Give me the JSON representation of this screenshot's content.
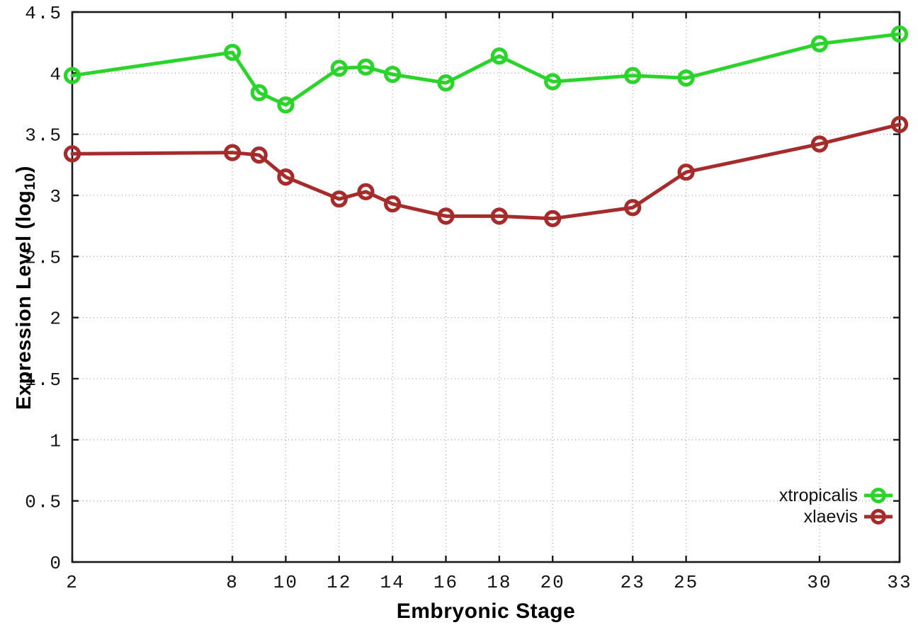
{
  "chart_data": {
    "type": "line",
    "xlabel": "Embryonic Stage",
    "ylabel": "Expression Level (log10)",
    "ylabel_parts": {
      "main": "Expression Level (log",
      "sub": "10",
      "end": ")"
    },
    "xlim": [
      2,
      33
    ],
    "ylim": [
      0,
      4.5
    ],
    "grid": "dotted",
    "legend_position": "inside-bottom-right",
    "x": [
      2,
      8,
      9,
      10,
      12,
      13,
      14,
      16,
      18,
      20,
      23,
      25,
      30,
      33
    ],
    "x_tick_values": [
      2,
      8,
      10,
      12,
      14,
      16,
      18,
      20,
      23,
      25,
      30,
      33
    ],
    "x_tick_labels": [
      "2",
      "8",
      "10",
      "12",
      "14",
      "16",
      "18",
      "20",
      "23",
      "25",
      "30",
      "33"
    ],
    "y_tick_values": [
      0,
      0.5,
      1,
      1.5,
      2,
      2.5,
      3,
      3.5,
      4,
      4.5
    ],
    "y_tick_labels": [
      "0",
      "0.5",
      "1",
      "1.5",
      "2",
      "2.5",
      "3",
      "3.5",
      "4",
      "4.5"
    ],
    "series": [
      {
        "name": "xtropicalis",
        "color": "#2bd42b",
        "values": [
          3.98,
          4.17,
          3.84,
          3.74,
          4.04,
          4.05,
          3.99,
          3.92,
          4.14,
          3.93,
          3.98,
          3.96,
          4.24,
          4.32
        ]
      },
      {
        "name": "xlaevis",
        "color": "#a62b2b",
        "values": [
          3.34,
          3.35,
          3.33,
          3.15,
          2.97,
          3.03,
          2.93,
          2.83,
          2.83,
          2.81,
          2.9,
          3.19,
          3.42,
          3.58
        ]
      }
    ]
  },
  "style": {
    "axis_color": "#1a1a1a",
    "grid_color": "#a8a8a8",
    "background": "#ffffff"
  }
}
